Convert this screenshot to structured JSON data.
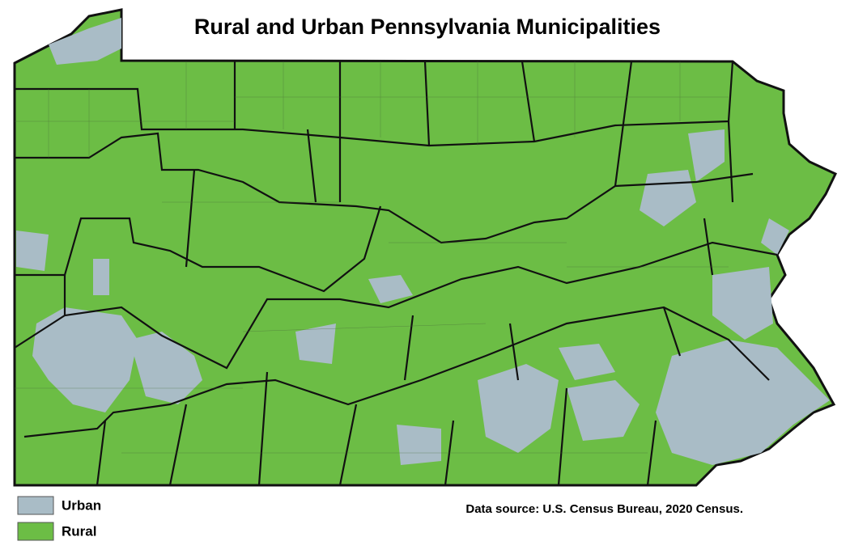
{
  "title": "Rural and Urban Pennsylvania Municipalities",
  "legend": [
    {
      "label": "Urban",
      "color": "#a9bcc6"
    },
    {
      "label": "Rural",
      "color": "#6cbd45"
    }
  ],
  "source": "Data source: U.S. Census Bureau, 2020 Census."
}
